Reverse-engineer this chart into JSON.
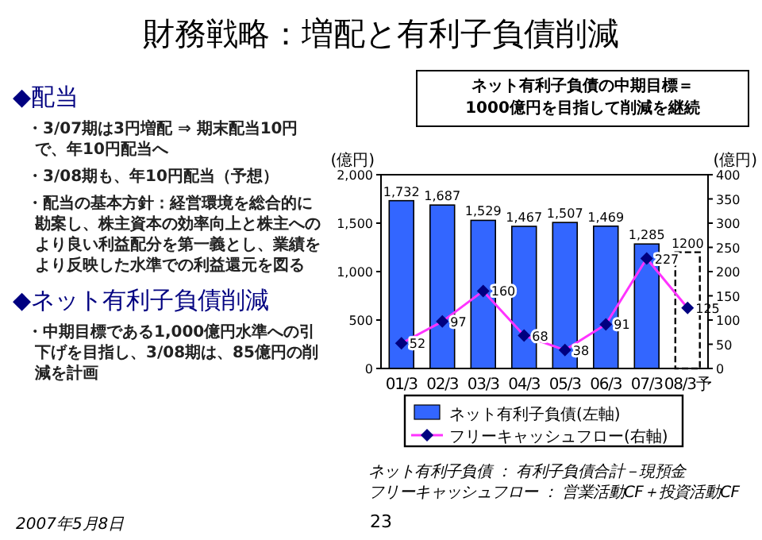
{
  "chart_data": {
    "type": "bar",
    "title": "財務戦略：増配と有利子負債削減",
    "categories": [
      "01/3",
      "02/3",
      "03/3",
      "04/3",
      "05/3",
      "06/3",
      "07/3",
      "08/3予"
    ],
    "series": [
      {
        "name": "ネット有利子負債(左軸)",
        "color": "#3366ff",
        "colors": [
          "#3366ff",
          "#3366ff",
          "#3366ff",
          "#3366ff",
          "#3366ff",
          "#3366ff",
          "#3366ff",
          "#ffffff"
        ],
        "values": [
          1732,
          1687,
          1529,
          1467,
          1507,
          1469,
          1285,
          1200
        ],
        "value_labels": [
          "1,732",
          "1,687",
          "1,529",
          "1,467",
          "1,507",
          "1,469",
          "1,285",
          "1200"
        ]
      },
      {
        "name": "フリーキャッシュフロー(右軸)",
        "type": "line",
        "axis": "y2",
        "color": "#ff33ff",
        "values": [
          52,
          97,
          160,
          68,
          38,
          91,
          227,
          125
        ],
        "value_labels": [
          "52",
          "97",
          "160",
          "68",
          "38",
          "91",
          "227",
          "125"
        ]
      }
    ],
    "ylabel": "(億円)",
    "y2label": "(億円)",
    "ylim": [
      0,
      2000
    ],
    "yticks": [
      0,
      500,
      {
        "value": 1000,
        "label": "1,000"
      },
      {
        "value": 1500,
        "label": "1,500"
      },
      {
        "value": 2000,
        "label": "2,000"
      }
    ],
    "y2lim": [
      0,
      400
    ],
    "y2ticks": [
      0,
      50,
      100,
      150,
      200,
      250,
      300,
      350,
      400
    ],
    "legend": "bottom",
    "marker": "diamond",
    "annotations": [
      "◆配当",
      "・3/07期は3円増配 ⇒ 期末配当10円で、年10円配当へ",
      "・3/08期も、年10円配当（予想）",
      "・配当の基本方針：経営環境を総合的に勘案し、株主資本の効率向上と株主へのより良い利益配分を第一義とし、業績をより反映した水準での利益還元を図る",
      "◆ネット有利子負債削減",
      "・中期目標である1,000億円水準への引下げを目指し、3/08期は、85億円の削減を計画",
      "ネット有利子負債の中期目標＝\n1000億円を目指して削減を継続",
      "ネット有利子負債 ： 有利子負債合計－現預金",
      "フリーキャッシュフロー ： 営業活動CF＋投資活動CF",
      "2007年5月8日",
      "23"
    ]
  }
}
